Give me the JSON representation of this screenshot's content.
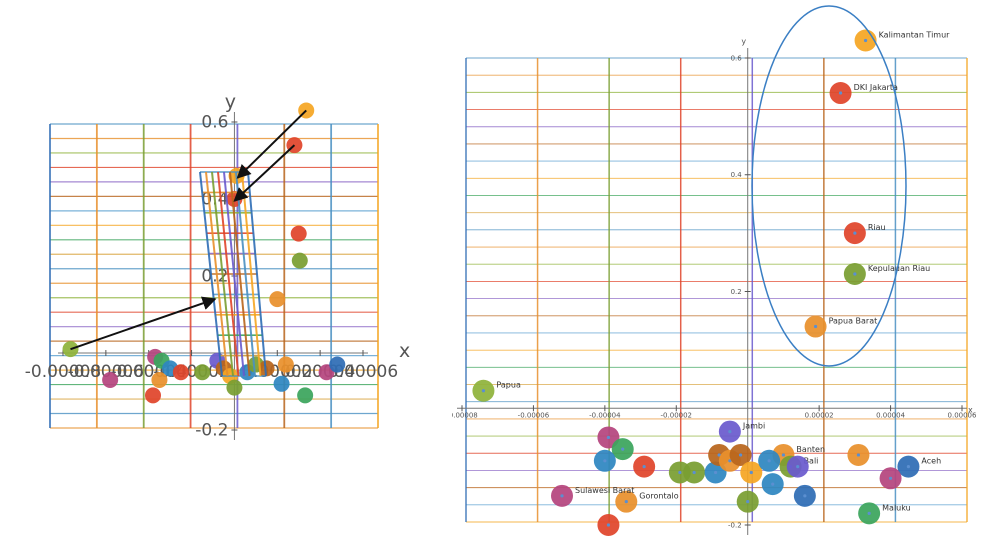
{
  "chart_data": [
    {
      "type": "scatter",
      "xlabel": "x",
      "ylabel": "y",
      "xticks": [
        "-0.00008",
        "-0.00006",
        "-0.00004",
        "-0.00002",
        "0.00002",
        "0.00004",
        "0.00006"
      ],
      "yticks": [
        "0.6",
        "0.4",
        "0.2",
        "-0.2"
      ],
      "points": [
        {
          "x": -7.65e-05,
          "y": 0.01,
          "color": "#8fb33b"
        },
        {
          "x": 3.35e-05,
          "y": 0.63,
          "color": "#f5a623"
        },
        {
          "x": 2.8e-05,
          "y": 0.54,
          "color": "#e0452b"
        },
        {
          "x": 3e-05,
          "y": 0.31,
          "color": "#e0452b"
        },
        {
          "x": 3.05e-05,
          "y": 0.24,
          "color": "#7a9e32"
        },
        {
          "x": 2e-05,
          "y": 0.14,
          "color": "#e8902c"
        },
        {
          "x": 1e-06,
          "y": 0.46,
          "color": "#f5a623"
        },
        {
          "x": 0.0,
          "y": 0.4,
          "color": "#e0452b"
        },
        {
          "x": -5.8e-05,
          "y": -0.07,
          "color": "#b5457e"
        },
        {
          "x": -3.8e-05,
          "y": -0.11,
          "color": "#e0452b"
        },
        {
          "x": -3.5e-05,
          "y": -0.07,
          "color": "#e8902c"
        },
        {
          "x": -3.7e-05,
          "y": -0.01,
          "color": "#b5457e"
        },
        {
          "x": -3.4e-05,
          "y": -0.02,
          "color": "#3ba55c"
        },
        {
          "x": -3e-05,
          "y": -0.04,
          "color": "#2e86c1"
        },
        {
          "x": -2.5e-05,
          "y": -0.05,
          "color": "#e0452b"
        },
        {
          "x": -1.5e-05,
          "y": -0.05,
          "color": "#7a9e32"
        },
        {
          "x": -8e-06,
          "y": -0.02,
          "color": "#6a5acd"
        },
        {
          "x": -5e-06,
          "y": -0.04,
          "color": "#b8651c"
        },
        {
          "x": -2e-06,
          "y": -0.06,
          "color": "#f5a623"
        },
        {
          "x": 0.0,
          "y": -0.09,
          "color": "#7a9e32"
        },
        {
          "x": 6e-06,
          "y": -0.05,
          "color": "#2e86c1"
        },
        {
          "x": 1e-05,
          "y": -0.03,
          "color": "#7a9e32"
        },
        {
          "x": 1.5e-05,
          "y": -0.04,
          "color": "#b8651c"
        },
        {
          "x": 2.4e-05,
          "y": -0.03,
          "color": "#e8902c"
        },
        {
          "x": 2.2e-05,
          "y": -0.08,
          "color": "#2e86c1"
        },
        {
          "x": 3.3e-05,
          "y": -0.11,
          "color": "#3ba55c"
        },
        {
          "x": 4.3e-05,
          "y": -0.05,
          "color": "#b5457e"
        },
        {
          "x": 4.8e-05,
          "y": -0.03,
          "color": "#2e6db5"
        }
      ]
    },
    {
      "type": "scatter",
      "xlabel": "x",
      "ylabel": "y",
      "xticks": [
        "-0.00008",
        "-0.00006",
        "-0.00004",
        "-0.00002",
        "0.00002",
        "0.00004",
        "0.00006"
      ],
      "yticks": [
        "0.6",
        "0.4",
        "0.2",
        "-0.2"
      ],
      "points": [
        {
          "x": -7.4e-05,
          "y": 0.03,
          "label": "Papua",
          "color": "#8fb33b"
        },
        {
          "x": 3.3e-05,
          "y": 0.63,
          "label": "Kalimantan Timur",
          "color": "#f5a623"
        },
        {
          "x": 2.6e-05,
          "y": 0.54,
          "label": "DKI Jakarta",
          "color": "#e0452b"
        },
        {
          "x": 3e-05,
          "y": 0.3,
          "label": "Riau",
          "color": "#e0452b"
        },
        {
          "x": 3e-05,
          "y": 0.23,
          "label": "Kepulauan Riau",
          "color": "#7a9e32"
        },
        {
          "x": 1.9e-05,
          "y": 0.14,
          "label": "Papua Barat",
          "color": "#e8902c"
        },
        {
          "x": -5e-06,
          "y": -0.04,
          "label": "Jambi",
          "color": "#6a5acd"
        },
        {
          "x": 1e-05,
          "y": -0.08,
          "label": "Banten",
          "color": "#e8902c"
        },
        {
          "x": 1.2e-05,
          "y": -0.1,
          "label": "Bali",
          "color": "#7a9e32"
        },
        {
          "x": 4.5e-05,
          "y": -0.1,
          "label": "Aceh",
          "color": "#2e6db5"
        },
        {
          "x": 3.4e-05,
          "y": -0.18,
          "label": "Maluku",
          "color": "#3ba55c"
        },
        {
          "x": -3.4e-05,
          "y": -0.16,
          "label": "Gorontalo",
          "color": "#e8902c"
        },
        {
          "x": -5.2e-05,
          "y": -0.15,
          "label": "Sulawesi Barat",
          "color": "#b5457e"
        },
        {
          "x": -3.9e-05,
          "y": -0.2,
          "color": "#e0452b"
        },
        {
          "x": -3.9e-05,
          "y": -0.05,
          "color": "#b5457e"
        },
        {
          "x": -3.5e-05,
          "y": -0.07,
          "color": "#3ba55c"
        },
        {
          "x": -4e-05,
          "y": -0.09,
          "color": "#2e86c1"
        },
        {
          "x": -2.9e-05,
          "y": -0.1,
          "color": "#e0452b"
        },
        {
          "x": -1.9e-05,
          "y": -0.11,
          "color": "#7a9e32"
        },
        {
          "x": -1.5e-05,
          "y": -0.11,
          "color": "#7a9e32"
        },
        {
          "x": -9e-06,
          "y": -0.11,
          "color": "#2e86c1"
        },
        {
          "x": -8e-06,
          "y": -0.08,
          "color": "#b8651c"
        },
        {
          "x": -5e-06,
          "y": -0.09,
          "color": "#e8902c"
        },
        {
          "x": -2e-06,
          "y": -0.08,
          "color": "#b8651c"
        },
        {
          "x": 1e-06,
          "y": -0.11,
          "color": "#f5a623"
        },
        {
          "x": 0.0,
          "y": -0.16,
          "color": "#7a9e32"
        },
        {
          "x": 6e-06,
          "y": -0.09,
          "color": "#2e86c1"
        },
        {
          "x": 7e-06,
          "y": -0.13,
          "color": "#2e86c1"
        },
        {
          "x": 1.4e-05,
          "y": -0.1,
          "color": "#6a5acd"
        },
        {
          "x": 1.6e-05,
          "y": -0.15,
          "color": "#2e6db5"
        },
        {
          "x": 3.1e-05,
          "y": -0.08,
          "color": "#e8902c"
        },
        {
          "x": 4e-05,
          "y": -0.12,
          "color": "#b5457e"
        }
      ]
    }
  ],
  "colors": {
    "vertical_lines": [
      "#2e6db5",
      "#e8902c",
      "#7a9e32",
      "#e0452b",
      "#6a5acd",
      "#b8651c",
      "#4a90c2",
      "#f5a623"
    ],
    "horizontal_lines": [
      "#4a90c2",
      "#e8902c",
      "#8fb33b",
      "#e0452b",
      "#8e6bc8",
      "#b8651c",
      "#5aa0d0",
      "#f5a623",
      "#3ba55c",
      "#d9a441"
    ],
    "arrow": "#111111",
    "ellipse": "#3b7fc4"
  }
}
